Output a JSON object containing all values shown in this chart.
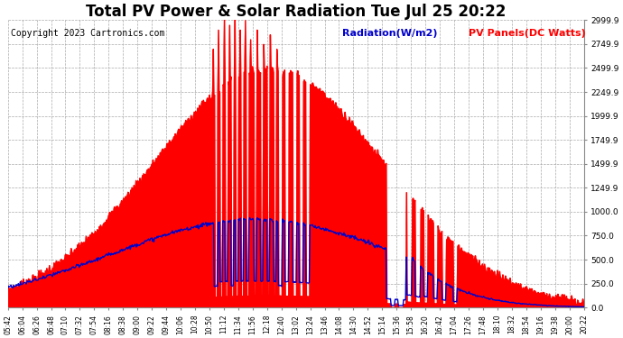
{
  "title": "Total PV Power & Solar Radiation Tue Jul 25 20:22",
  "copyright": "Copyright 2023 Cartronics.com",
  "legend_radiation": "Radiation(W/m2)",
  "legend_pv": "PV Panels(DC Watts)",
  "yticks": [
    0.0,
    250.0,
    500.0,
    750.0,
    1000.0,
    1249.9,
    1499.9,
    1749.9,
    1999.9,
    2249.9,
    2499.9,
    2749.9,
    2999.9
  ],
  "ylim": [
    0,
    3000
  ],
  "background_color": "#ffffff",
  "plot_bg_color": "#ffffff",
  "grid_color": "#aaaaaa",
  "pv_color": "#ff0000",
  "radiation_color": "#0000cc",
  "title_fontsize": 12,
  "copyright_fontsize": 7,
  "legend_fontsize": 8
}
